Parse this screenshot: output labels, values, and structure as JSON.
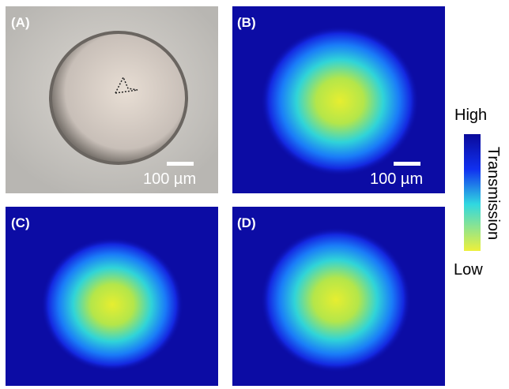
{
  "panels": [
    {
      "label": "(A)",
      "scale_bar": "100 µm"
    },
    {
      "label": "(B)",
      "scale_bar": "100 µm"
    },
    {
      "label": "(C)"
    },
    {
      "label": "(D)"
    }
  ],
  "colorbar": {
    "high": "High",
    "low": "Low",
    "title": "Transmission"
  }
}
